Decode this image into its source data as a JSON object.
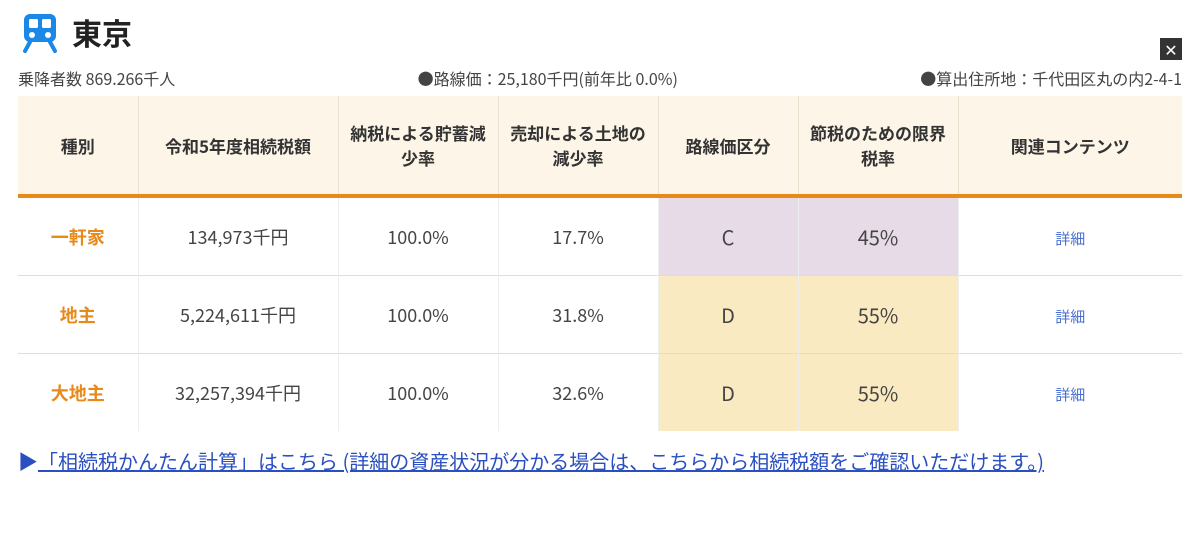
{
  "header": {
    "station_name": "東京",
    "close_glyph": "✕",
    "icon_color": "#1b87e6"
  },
  "meta": {
    "passengers": "乗降者数 869.266千人",
    "route_price": "●路線価：25,180千円(前年比 0.0%)",
    "address": "●算出住所地：千代田区丸の内2-4-1"
  },
  "columns": {
    "c0": "種別",
    "c1": "令和5年度相続税額",
    "c2": "納税による貯蓄減少率",
    "c3": "売却による土地の減少率",
    "c4": "路線価区分",
    "c5": "節税のための限界税率",
    "c6": "関連コンテンツ"
  },
  "rows": {
    "r0": {
      "type": "一軒家",
      "amount": "134,973千円",
      "savings": "100.0%",
      "land": "17.7%",
      "grade": "C",
      "rate": "45%",
      "detail": "詳細",
      "hl": "c"
    },
    "r1": {
      "type": "地主",
      "amount": "5,224,611千円",
      "savings": "100.0%",
      "land": "31.8%",
      "grade": "D",
      "rate": "55%",
      "detail": "詳細",
      "hl": "d"
    },
    "r2": {
      "type": "大地主",
      "amount": "32,257,394千円",
      "savings": "100.0%",
      "land": "32.6%",
      "grade": "D",
      "rate": "55%",
      "detail": "詳細",
      "hl": "d"
    }
  },
  "footer": {
    "link": "「相続税かんたん計算」はこちら (詳細の資産状況が分かる場合は、こちらから相続税額をご確認いただけます。)"
  },
  "col_widths": [
    "120px",
    "200px",
    "160px",
    "160px",
    "140px",
    "160px",
    "auto"
  ]
}
